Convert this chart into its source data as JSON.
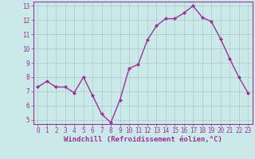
{
  "hours": [
    0,
    1,
    2,
    3,
    4,
    5,
    6,
    7,
    8,
    9,
    10,
    11,
    12,
    13,
    14,
    15,
    16,
    17,
    18,
    19,
    20,
    21,
    22,
    23
  ],
  "values": [
    7.3,
    7.7,
    7.3,
    7.3,
    6.9,
    8.0,
    6.7,
    5.4,
    4.8,
    6.4,
    8.6,
    8.9,
    10.6,
    11.6,
    12.1,
    12.1,
    12.5,
    13.0,
    12.2,
    11.9,
    10.7,
    9.3,
    8.0,
    6.9
  ],
  "line_color": "#993399",
  "marker": "D",
  "marker_size": 2.0,
  "bg_color": "#cce9e9",
  "grid_color": "#aacccc",
  "xlabel": "Windchill (Refroidissement éolien,°C)",
  "ylabel": "",
  "ylim_min": 4.7,
  "ylim_max": 13.3,
  "xlim_min": -0.5,
  "xlim_max": 23.5,
  "yticks": [
    5,
    6,
    7,
    8,
    9,
    10,
    11,
    12,
    13
  ],
  "xticks": [
    0,
    1,
    2,
    3,
    4,
    5,
    6,
    7,
    8,
    9,
    10,
    11,
    12,
    13,
    14,
    15,
    16,
    17,
    18,
    19,
    20,
    21,
    22,
    23
  ],
  "tick_fontsize": 5.5,
  "xlabel_fontsize": 6.5,
  "line_width": 1.0,
  "spine_color": "#993399"
}
